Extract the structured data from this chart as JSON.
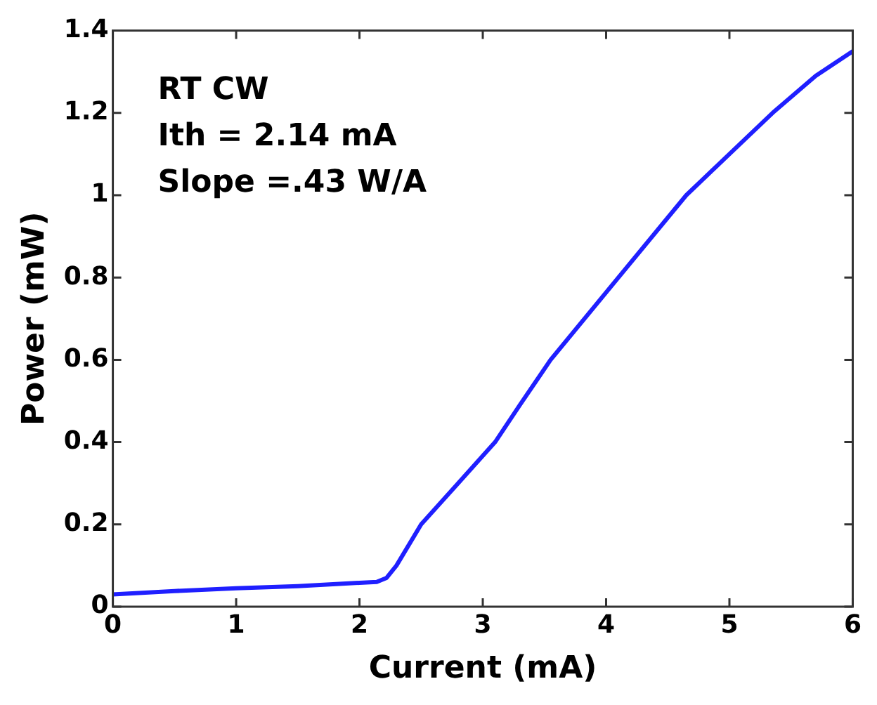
{
  "chart_data": {
    "type": "line",
    "xlabel": "Current (mA)",
    "ylabel": "Power (mW)",
    "annotations": [
      "RT CW",
      "Ith = 2.14 mA",
      "Slope =.43 W/A"
    ],
    "x": [
      0,
      0.5,
      1,
      1.5,
      2,
      2.14,
      2.22,
      2.3,
      2.5,
      2.8,
      3.1,
      3.3,
      3.55,
      4.1,
      4.65,
      5,
      5.35,
      5.7,
      6
    ],
    "series": [
      {
        "color": "#1f1fff",
        "values": [
          0.03,
          0.038,
          0.045,
          0.05,
          0.058,
          0.06,
          0.07,
          0.1,
          0.2,
          0.3,
          0.4,
          0.49,
          0.6,
          0.8,
          1.0,
          1.1,
          1.2,
          1.29,
          1.35
        ]
      }
    ],
    "xlim": [
      0,
      6
    ],
    "xticks": [
      0,
      1,
      2,
      3,
      4,
      5,
      6
    ],
    "ylim": [
      0,
      1.4
    ],
    "yticks": [
      0,
      0.2,
      0.4,
      0.6,
      0.8,
      1,
      1.2,
      1.4
    ],
    "grid": false,
    "legend": false,
    "marker": "none",
    "line_style": "solid"
  }
}
